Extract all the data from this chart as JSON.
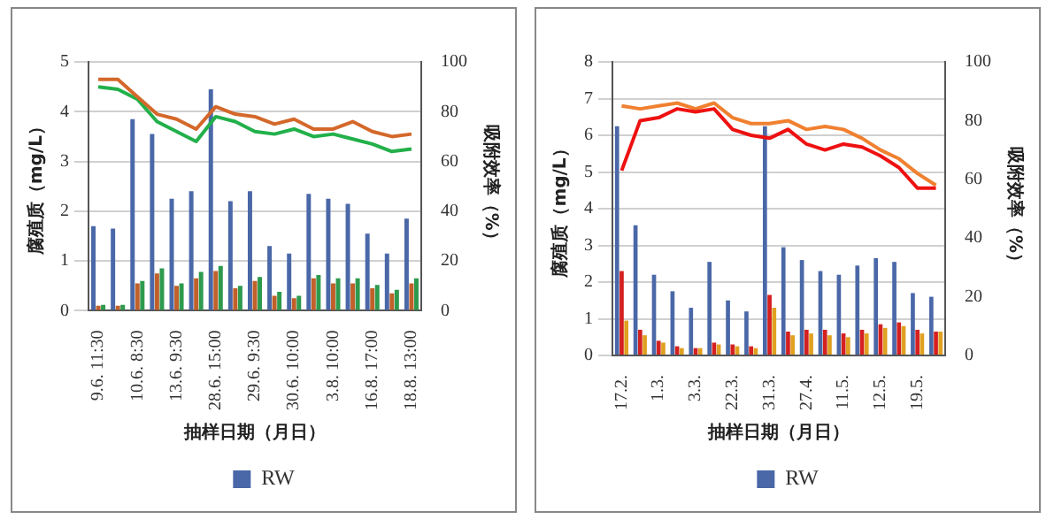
{
  "chart_data": [
    {
      "type": "bar",
      "xlabel": "抽样日期（月日）",
      "ylabel": "腐殖质（mg/L）",
      "y2label": "吸附效率（%）",
      "categories": [
        "9.6. 11:30",
        null,
        "10.6. 8:30",
        null,
        "13.6. 9:30",
        null,
        "28.6. 15:00",
        null,
        "29.6. 9:30",
        null,
        "30.6. 10:00",
        null,
        "3.8. 10:00",
        null,
        "16.8. 17:00",
        null,
        "18.8. 13:00"
      ],
      "ylim": [
        0,
        5
      ],
      "yticks": [
        0,
        1,
        2,
        3,
        4,
        5
      ],
      "y2lim": [
        0,
        100
      ],
      "y2ticks": [
        0,
        20,
        40,
        60,
        80,
        100
      ],
      "grid": "y",
      "legend": "bottom",
      "series": [
        {
          "name": "RW",
          "color": "#4a68a8",
          "values": [
            1.7,
            1.65,
            3.85,
            3.55,
            2.25,
            2.4,
            4.45,
            2.2,
            2.4,
            1.3,
            1.15,
            2.35,
            2.25,
            2.15,
            1.55,
            1.15,
            1.85
          ]
        },
        {
          "color": "#c0602a",
          "values": [
            0.1,
            0.1,
            0.55,
            0.75,
            0.5,
            0.65,
            0.8,
            0.45,
            0.6,
            0.3,
            0.25,
            0.65,
            0.55,
            0.55,
            0.45,
            0.35,
            0.55
          ]
        },
        {
          "color": "#2e9a4e",
          "values": [
            0.12,
            0.12,
            0.6,
            0.85,
            0.55,
            0.78,
            0.9,
            0.5,
            0.68,
            0.38,
            0.3,
            0.72,
            0.65,
            0.65,
            0.52,
            0.42,
            0.65
          ]
        },
        {
          "type": "line",
          "axis": "y2",
          "color": "#d4682a",
          "values": [
            93,
            93,
            86,
            79,
            77,
            73,
            82,
            79,
            78,
            75,
            77,
            73,
            73,
            76,
            72,
            70,
            71
          ]
        },
        {
          "type": "line",
          "axis": "y2",
          "color": "#22b04a",
          "values": [
            90,
            89,
            85,
            76,
            72,
            68,
            78,
            76,
            72,
            71,
            73,
            70,
            71,
            69,
            67,
            64,
            65
          ]
        }
      ]
    },
    {
      "type": "bar",
      "xlabel": "抽样日期（月日）",
      "ylabel": "腐殖质（mg/L）",
      "y2label": "吸附效率（%）",
      "categories": [
        "17.2.",
        null,
        "1.3.",
        null,
        "3.3.",
        null,
        "22.3.",
        null,
        "31.3.",
        null,
        "27.4.",
        null,
        "11.5.",
        null,
        "12.5.",
        null,
        "19.5.",
        null
      ],
      "ylim": [
        0,
        8
      ],
      "yticks": [
        0,
        1,
        2,
        3,
        4,
        5,
        6,
        7,
        8
      ],
      "y2lim": [
        0,
        100
      ],
      "y2ticks": [
        0,
        20,
        40,
        60,
        80,
        100
      ],
      "grid": "y",
      "legend": "bottom",
      "series": [
        {
          "name": "RW",
          "color": "#4a68a8",
          "values": [
            6.25,
            3.55,
            2.2,
            1.75,
            1.3,
            2.55,
            1.5,
            1.2,
            6.25,
            2.95,
            2.6,
            2.3,
            2.2,
            2.45,
            2.65,
            2.55,
            1.7,
            1.6
          ]
        },
        {
          "color": "#d42020",
          "values": [
            2.3,
            0.7,
            0.4,
            0.25,
            0.2,
            0.35,
            0.3,
            0.25,
            1.65,
            0.65,
            0.7,
            0.7,
            0.6,
            0.7,
            0.85,
            0.9,
            0.7,
            0.65
          ]
        },
        {
          "color": "#e0a020",
          "values": [
            0.95,
            0.55,
            0.35,
            0.2,
            0.2,
            0.3,
            0.25,
            0.2,
            1.3,
            0.55,
            0.6,
            0.55,
            0.5,
            0.6,
            0.75,
            0.8,
            0.6,
            0.65
          ]
        },
        {
          "type": "line",
          "axis": "y2",
          "color": "#ee1111",
          "values": [
            63,
            80,
            81,
            84,
            83,
            84,
            77,
            75,
            74,
            77,
            72,
            70,
            72,
            71,
            68,
            64,
            57,
            57
          ]
        },
        {
          "type": "line",
          "axis": "y2",
          "color": "#f08030",
          "values": [
            85,
            84,
            85,
            86,
            84,
            86,
            81,
            79,
            79,
            80,
            77,
            78,
            77,
            74,
            70,
            67,
            62,
            58
          ]
        }
      ]
    }
  ]
}
